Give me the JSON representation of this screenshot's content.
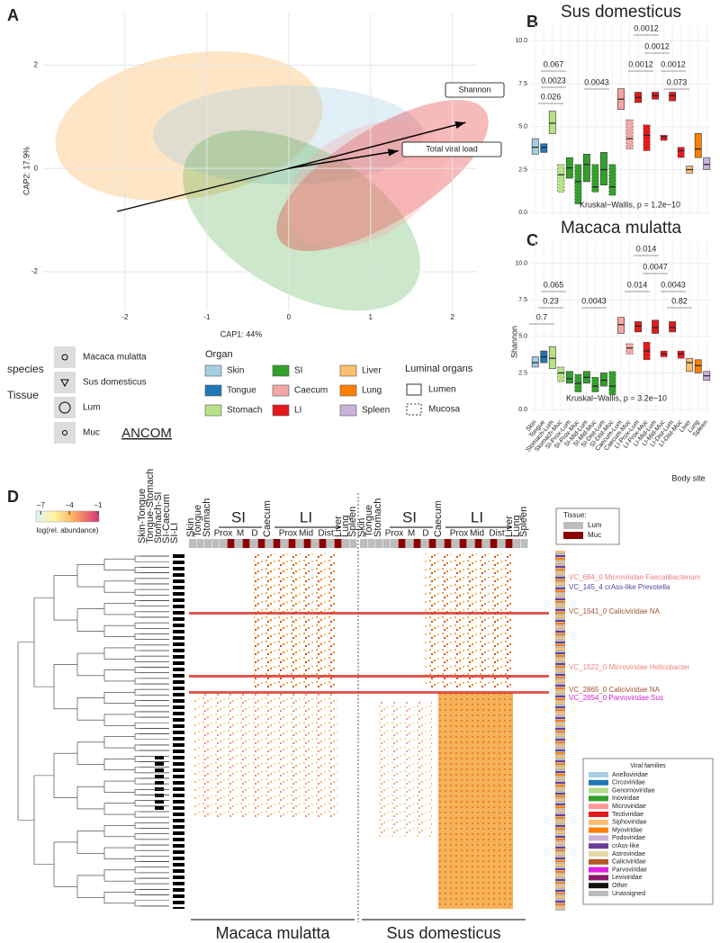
{
  "chart_data": [
    {
      "type": "scatter",
      "panel": "A",
      "xlabel": "CAP1: 44%",
      "ylabel": "CAP2: 17.9%",
      "xlim": [
        -3,
        2.3
      ],
      "ylim": [
        -2.75,
        3.0
      ],
      "xticks": [
        -2,
        -1,
        0,
        1,
        2
      ],
      "yticks": [
        -2,
        0,
        2
      ],
      "grid": true,
      "arrows": [
        {
          "name": "Shannon",
          "x": 2.16,
          "y": 0.89
        },
        {
          "name": "Total viral load",
          "x": 1.34,
          "y": 0.34
        }
      ],
      "species_legend": {
        "title": "species",
        "entries": [
          "Macaca mulatta",
          "Sus domesticus"
        ]
      },
      "tissue_legend": {
        "title": "Tissue",
        "entries": [
          "Lum",
          "Muc"
        ]
      },
      "organ_legend": {
        "title": "Organ",
        "entries": [
          {
            "name": "Skin",
            "color": "#a6cee3"
          },
          {
            "name": "Tongue",
            "color": "#1f78b4"
          },
          {
            "name": "Stomach",
            "color": "#b8e186"
          },
          {
            "name": "SI",
            "color": "#33a02c"
          },
          {
            "name": "Caecum",
            "color": "#f4a6a6"
          },
          {
            "name": "LI",
            "color": "#e31a1c"
          },
          {
            "name": "Liver",
            "color": "#fdbf6f"
          },
          {
            "name": "Lung",
            "color": "#ff7f00"
          },
          {
            "name": "Spleen",
            "color": "#cab2d6"
          }
        ]
      },
      "luminal_legend": {
        "title": "Luminal organs",
        "entries": [
          "Lumen",
          "Mucosa"
        ]
      },
      "ancom_title": "ANCOM"
    },
    {
      "type": "box",
      "panel": "B",
      "title": "Sus domesticus",
      "ylim": [
        -0.3,
        10.9
      ],
      "yticks": [
        {
          "value": 0,
          "label": "0.0"
        },
        2.5,
        {
          "value": 5,
          "label": "5.0"
        },
        7.5,
        {
          "value": 10,
          "label": "10.0"
        }
      ],
      "categories": [
        null,
        null,
        null,
        null,
        null,
        null,
        null,
        null,
        null,
        null,
        null,
        null,
        null,
        null,
        null,
        null,
        null,
        null,
        null,
        null,
        null
      ],
      "colors": [
        "#a6cee3",
        "#1f78b4",
        "#b8e186",
        "#b8e186",
        "#33a02c",
        "#33a02c",
        "#33a02c",
        "#33a02c",
        "#33a02c",
        "#33a02c",
        "#f4a6a6",
        "#f4a6a6",
        "#e31a1c",
        "#e31a1c",
        "#e31a1c",
        "#e31a1c",
        "#e31a1c",
        "#e31a1c",
        "#fdbf6f",
        "#ff7f00",
        "#cab2d6"
      ],
      "median": [
        3.8,
        3.8,
        5.2,
        2.2,
        2.6,
        1.8,
        2.8,
        1.5,
        2.5,
        1.5,
        6.6,
        4.3,
        6.7,
        4.5,
        6.8,
        4.4,
        6.8,
        3.6,
        2.5,
        3.7,
        2.8
      ],
      "q1": [
        3.4,
        3.5,
        4.6,
        1.2,
        2.0,
        0.5,
        1.8,
        1.2,
        1.6,
        1.0,
        6.0,
        3.7,
        6.4,
        3.6,
        6.6,
        4.2,
        6.5,
        3.2,
        2.3,
        3.2,
        2.5
      ],
      "q3": [
        4.3,
        4.0,
        5.9,
        2.8,
        3.2,
        2.8,
        3.4,
        2.8,
        3.5,
        2.8,
        7.2,
        5.4,
        7.0,
        5.1,
        7.0,
        4.5,
        7.0,
        3.8,
        2.7,
        4.6,
        3.2
      ],
      "annotations": [
        "0.026",
        "0.0023",
        "0.067",
        "0.0043",
        "0.0012",
        "0.0012",
        "0.0012",
        "0.0012",
        "0.073"
      ],
      "test": "Kruskal−Wallis, p = 1.2e−10"
    },
    {
      "type": "box",
      "panel": "C",
      "title": "Macaca mulatta",
      "ylabel": "Shannon",
      "xlabel": "Body site",
      "ylim": [
        -0.3,
        11.5
      ],
      "yticks": [
        {
          "value": 0,
          "label": "0.0"
        },
        2.5,
        {
          "value": 5,
          "label": "5.0"
        },
        7.5,
        {
          "value": 10,
          "label": "10.0"
        }
      ],
      "categories": [
        "Skin",
        "Tongue",
        "Stomach-Lum",
        "Stomach-Muc",
        "SI-Prox-Lum",
        "SI-Prox-Muc",
        "SI-Mid-Lum",
        "SI-Mid-Muc",
        "SI-Dist-Lum",
        "SI-Dist-Muc",
        "Caecum-Lum",
        "Caecum-Muc",
        "LI-Prox-Lum",
        "LI-Prox-Muc",
        "LI-Mid-Lum",
        "LI-Mid-Muc",
        "LI-Dist-Lum",
        "LI-Dist-Muc",
        "Liver",
        "Lung",
        "Spleen"
      ],
      "colors": [
        "#a6cee3",
        "#1f78b4",
        "#b8e186",
        "#b8e186",
        "#33a02c",
        "#33a02c",
        "#33a02c",
        "#33a02c",
        "#33a02c",
        "#33a02c",
        "#f4a6a6",
        "#f4a6a6",
        "#e31a1c",
        "#e31a1c",
        "#e31a1c",
        "#e31a1c",
        "#e31a1c",
        "#e31a1c",
        "#fdbf6f",
        "#ff7f00",
        "#cab2d6"
      ],
      "median": [
        3.2,
        3.6,
        3.5,
        2.5,
        2.1,
        1.8,
        2.2,
        1.6,
        2.0,
        1.6,
        5.8,
        4.2,
        5.7,
        4.0,
        5.6,
        3.8,
        5.6,
        3.8,
        3.2,
        3.0,
        2.3
      ],
      "q1": [
        2.9,
        3.2,
        2.8,
        1.9,
        1.8,
        1.2,
        1.8,
        1.2,
        1.6,
        1.0,
        5.2,
        3.8,
        5.3,
        3.4,
        5.2,
        3.6,
        5.3,
        3.5,
        2.6,
        2.5,
        2.0
      ],
      "q3": [
        3.6,
        4.0,
        4.3,
        2.9,
        2.6,
        2.4,
        2.6,
        2.2,
        2.5,
        2.6,
        6.3,
        4.5,
        6.0,
        4.6,
        6.1,
        4.0,
        6.0,
        4.0,
        3.5,
        3.4,
        2.6
      ],
      "annotations": [
        "0.7",
        "0.23",
        "0.065",
        "0.0043",
        "0.014",
        "0.014",
        "0.0047",
        "0.0043",
        "0.82"
      ],
      "test": "Kruskal−Wallis, p = 3.2e−10"
    }
  ],
  "heatmap": {
    "panel": "D",
    "colorbar": {
      "label": "log(rel. abundance)",
      "lim": [
        -7.5,
        -0.9
      ],
      "ticks": [
        {
          "value": -7,
          "label": "−7"
        },
        {
          "value": -4,
          "label": "−4"
        },
        {
          "value": -1,
          "label": "−1"
        }
      ]
    },
    "ancom_columns": [
      "Skin-Tongue",
      "Tongue-Stomach",
      "Stomach-SI",
      "SI-Caecum",
      "SI-LI"
    ],
    "panels": [
      {
        "species": "Macaca mulatta",
        "columns": [
          "Skin",
          "Tongue",
          "Stomach",
          "Caecum",
          "Liver",
          "Lung",
          "Spleen"
        ],
        "groups": [
          {
            "name": "SI",
            "sections": [
              "Prox",
              "M",
              "D"
            ]
          },
          {
            "name": "LI",
            "sections": [
              "Prox",
              "Mid",
              "Dist"
            ]
          }
        ]
      },
      {
        "species": "Sus domesticus",
        "columns": [
          "Skin",
          "Tongue",
          "Stomach",
          "Caecum",
          "Liver",
          "Lung",
          "Spleen"
        ],
        "groups": [
          {
            "name": "SI",
            "sections": [
              "Prox",
              "M",
              "D"
            ]
          },
          {
            "name": "LI",
            "sections": [
              "Prox",
              "Mid",
              "Dist"
            ]
          }
        ]
      }
    ],
    "tissue_legend": {
      "title": "Tissue:",
      "entries": [
        {
          "name": "Lum",
          "color": "#bdbdbd"
        },
        {
          "name": "Muc",
          "color": "#8b0000"
        }
      ]
    },
    "highlights": [
      {
        "label": "VC_684_0 Microviridae Faecalibacterium",
        "color": "#f08080"
      },
      {
        "label": "VC_145_4 crAss-like Prevotella",
        "color": "#5b3fa0"
      },
      {
        "label": "VC_1541_0 Caliciviridae NA",
        "color": "#a0522d"
      },
      {
        "label": "VC_1522_0 Microviridae Helicobacter",
        "color": "#f08080"
      },
      {
        "label": "VC_2865_0 Caliciviridae NA",
        "color": "#a0522d"
      },
      {
        "label": "VC_2854_0 Parvoviridae Sus",
        "color": "#d020d0"
      }
    ],
    "families_legend": {
      "title": "Viral families",
      "entries": [
        {
          "name": "Anelloviridae",
          "color": "#a6cee3"
        },
        {
          "name": "Circoviridae",
          "color": "#1f78b4"
        },
        {
          "name": "Genomoviridae",
          "color": "#b2df8a"
        },
        {
          "name": "Inoviridae",
          "color": "#33a02c"
        },
        {
          "name": "Microviridae",
          "color": "#fb9a99"
        },
        {
          "name": "Tectiviridae",
          "color": "#e31a1c"
        },
        {
          "name": "Siphoviridae",
          "color": "#fdbf6f"
        },
        {
          "name": "Myoviridae",
          "color": "#ff7f00"
        },
        {
          "name": "Podoviridae",
          "color": "#cab2d6"
        },
        {
          "name": "crAss-like",
          "color": "#6a3d9a"
        },
        {
          "name": "Astroviridae",
          "color": "#e6d8a8"
        },
        {
          "name": "Caliciviridae",
          "color": "#b15928"
        },
        {
          "name": "Parvoviridae",
          "color": "#e020e0"
        },
        {
          "name": "Leviviridae",
          "color": "#8b1a6b"
        },
        {
          "name": "Other",
          "color": "#111111"
        },
        {
          "name": "Unassigned",
          "color": "#bbbbbb"
        }
      ]
    }
  }
}
